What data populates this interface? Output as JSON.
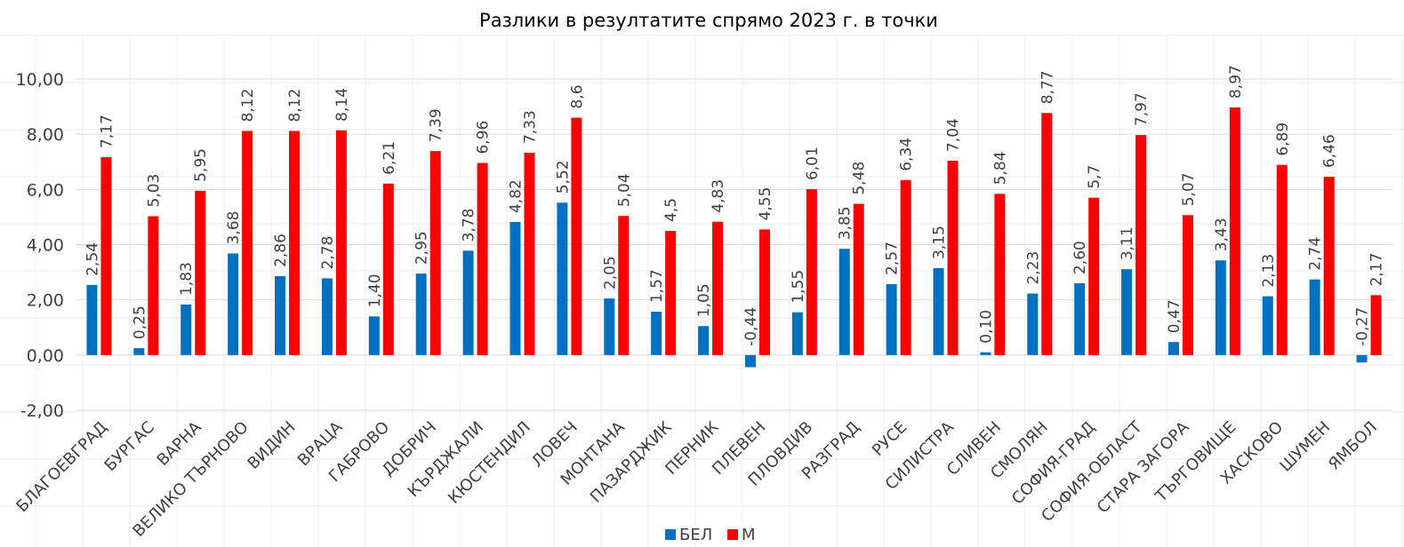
{
  "chart_data": {
    "type": "bar",
    "title": "Разлики в резултатите спрямо 2023 г. в точки",
    "categories": [
      "БЛАГОЕВГРАД",
      "БУРГАС",
      "ВАРНА",
      "ВЕЛИКО ТЪРНОВО",
      "ВИДИН",
      "ВРАЦА",
      "ГАБРОВО",
      "ДОБРИЧ",
      "КЪРДЖАЛИ",
      "КЮСТЕНДИЛ",
      "ЛОВЕЧ",
      "МОНТАНА",
      "ПАЗАРДЖИК",
      "ПЕРНИК",
      "ПЛЕВЕН",
      "ПЛОВДИВ",
      "РАЗГРАД",
      "РУСЕ",
      "СИЛИСТРА",
      "СЛИВЕН",
      "СМОЛЯН",
      "СОФИЯ-ГРАД",
      "СОФИЯ-ОБЛАСТ",
      "СТАРА ЗАГОРА",
      "ТЪРГОВИЩЕ",
      "ХАСКОВО",
      "ШУМЕН",
      "ЯМБОЛ"
    ],
    "series": [
      {
        "name": "БЕЛ",
        "color": "#0070C0",
        "values": [
          2.54,
          0.25,
          1.83,
          3.68,
          2.86,
          2.78,
          1.4,
          2.95,
          3.78,
          4.82,
          5.52,
          2.05,
          1.57,
          1.05,
          -0.44,
          1.55,
          3.85,
          2.57,
          3.15,
          0.1,
          2.23,
          2.6,
          3.11,
          0.47,
          3.43,
          2.13,
          2.74,
          -0.27
        ],
        "labels": [
          "2,54",
          "0,25",
          "1,83",
          "3,68",
          "2,86",
          "2,78",
          "1,40",
          "2,95",
          "3,78",
          "4,82",
          "5,52",
          "2,05",
          "1,57",
          "1,05",
          "-0,44",
          "1,55",
          "3,85",
          "2,57",
          "3,15",
          "0,10",
          "2,23",
          "2,60",
          "3,11",
          "0,47",
          "3,43",
          "2,13",
          "2,74",
          "-0,27"
        ]
      },
      {
        "name": "М",
        "color": "#FF0000",
        "values": [
          7.17,
          5.03,
          5.95,
          8.12,
          8.12,
          8.14,
          6.21,
          7.39,
          6.96,
          7.33,
          8.6,
          5.04,
          4.5,
          4.83,
          4.55,
          6.01,
          5.48,
          6.34,
          7.04,
          5.84,
          8.77,
          5.7,
          7.97,
          5.07,
          8.97,
          6.89,
          6.46,
          2.17
        ],
        "labels": [
          "7,17",
          "5,03",
          "5,95",
          "8,12",
          "8,12",
          "8,14",
          "6,21",
          "7,39",
          "6,96",
          "7,33",
          "8,6",
          "5,04",
          "4,5",
          "4,83",
          "4,55",
          "6,01",
          "5,48",
          "6,34",
          "7,04",
          "5,84",
          "8,77",
          "5,7",
          "7,97",
          "5,07",
          "8,97",
          "6,89",
          "6,46",
          "2,17"
        ]
      }
    ],
    "ylim": [
      -2,
      10
    ],
    "yticks": [
      -2,
      0,
      2,
      4,
      6,
      8,
      10
    ],
    "ytick_labels": [
      "-2,00",
      "0,00",
      "2,00",
      "4,00",
      "6,00",
      "8,00",
      "10,00"
    ],
    "xlabel": "",
    "ylabel": "",
    "grid": true,
    "legend_position": "bottom"
  }
}
